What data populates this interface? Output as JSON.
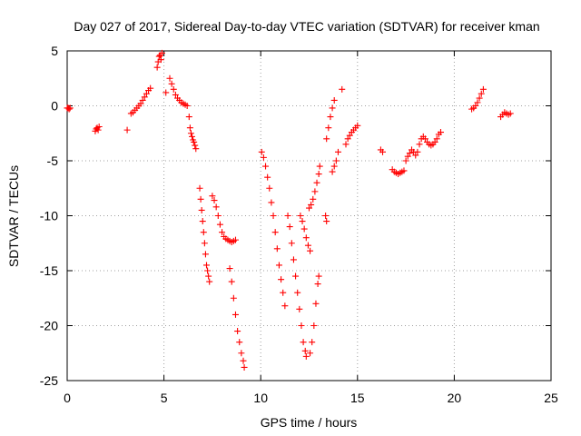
{
  "chart_data": {
    "type": "scatter",
    "title": "Day 027 of 2017, Sidereal Day-to-day VTEC variation (SDTVAR) for receiver kman",
    "xlabel": "GPS time / hours",
    "ylabel": "SDTVAR / TECUs",
    "xlim": [
      0,
      25
    ],
    "ylim": [
      -25,
      5
    ],
    "xticks": [
      "0",
      "5",
      "10",
      "15",
      "20",
      "25"
    ],
    "yticks": [
      "5",
      "0",
      "-5",
      "-10",
      "-15",
      "-20",
      "-25"
    ],
    "grid": true,
    "legend": "none",
    "marker": "plus",
    "color": "#ff0000",
    "series": [
      {
        "points": [
          [
            0.0,
            -0.2
          ],
          [
            0.05,
            -0.2
          ],
          [
            0.1,
            -0.3
          ],
          [
            0.15,
            -0.2
          ],
          [
            1.45,
            -2.3
          ],
          [
            1.5,
            -2.1
          ],
          [
            1.55,
            -2.0
          ],
          [
            1.6,
            -2.2
          ],
          [
            1.65,
            -1.9
          ],
          [
            3.1,
            -2.2
          ],
          [
            3.3,
            -0.7
          ],
          [
            3.4,
            -0.6
          ],
          [
            3.5,
            -0.4
          ],
          [
            3.6,
            -0.2
          ],
          [
            3.7,
            0.0
          ],
          [
            3.8,
            0.2
          ],
          [
            3.9,
            0.5
          ],
          [
            4.0,
            0.8
          ],
          [
            4.1,
            1.1
          ],
          [
            4.2,
            1.4
          ],
          [
            4.3,
            1.6
          ],
          [
            4.65,
            3.5
          ],
          [
            4.7,
            4.0
          ],
          [
            4.75,
            4.5
          ],
          [
            4.8,
            4.6
          ],
          [
            4.85,
            4.2
          ],
          [
            4.9,
            4.8
          ],
          [
            5.1,
            1.2
          ],
          [
            5.3,
            2.5
          ],
          [
            5.4,
            2.0
          ],
          [
            5.5,
            1.5
          ],
          [
            5.6,
            1.0
          ],
          [
            5.7,
            0.7
          ],
          [
            5.8,
            0.5
          ],
          [
            5.9,
            0.3
          ],
          [
            6.0,
            0.2
          ],
          [
            6.1,
            0.1
          ],
          [
            6.2,
            0.0
          ],
          [
            6.3,
            -1.0
          ],
          [
            6.35,
            -2.0
          ],
          [
            6.4,
            -2.5
          ],
          [
            6.45,
            -2.8
          ],
          [
            6.5,
            -3.1
          ],
          [
            6.55,
            -3.3
          ],
          [
            6.6,
            -3.6
          ],
          [
            6.65,
            -3.9
          ],
          [
            6.85,
            -7.5
          ],
          [
            6.9,
            -8.5
          ],
          [
            6.95,
            -9.5
          ],
          [
            7.0,
            -10.5
          ],
          [
            7.05,
            -11.5
          ],
          [
            7.1,
            -12.5
          ],
          [
            7.15,
            -13.5
          ],
          [
            7.2,
            -14.5
          ],
          [
            7.25,
            -15.0
          ],
          [
            7.3,
            -15.5
          ],
          [
            7.35,
            -16.0
          ],
          [
            7.5,
            -8.2
          ],
          [
            7.6,
            -8.6
          ],
          [
            7.7,
            -9.2
          ],
          [
            7.8,
            -10.0
          ],
          [
            7.9,
            -10.8
          ],
          [
            8.0,
            -11.5
          ],
          [
            8.1,
            -11.9
          ],
          [
            8.2,
            -12.1
          ],
          [
            8.3,
            -12.2
          ],
          [
            8.4,
            -12.3
          ],
          [
            8.5,
            -12.4
          ],
          [
            8.6,
            -12.3
          ],
          [
            8.7,
            -12.2
          ],
          [
            8.4,
            -14.8
          ],
          [
            8.5,
            -16.0
          ],
          [
            8.6,
            -17.5
          ],
          [
            8.7,
            -19.0
          ],
          [
            8.8,
            -20.5
          ],
          [
            8.9,
            -21.5
          ],
          [
            9.0,
            -22.5
          ],
          [
            9.1,
            -23.2
          ],
          [
            9.15,
            -23.8
          ],
          [
            10.05,
            -4.2
          ],
          [
            10.15,
            -4.7
          ],
          [
            10.25,
            -5.5
          ],
          [
            10.35,
            -6.5
          ],
          [
            10.45,
            -7.5
          ],
          [
            10.55,
            -8.8
          ],
          [
            10.65,
            -10.0
          ],
          [
            10.75,
            -11.5
          ],
          [
            10.85,
            -13.0
          ],
          [
            10.95,
            -14.5
          ],
          [
            11.05,
            -15.8
          ],
          [
            11.15,
            -17.0
          ],
          [
            11.25,
            -18.2
          ],
          [
            11.4,
            -10.0
          ],
          [
            11.5,
            -11.0
          ],
          [
            11.6,
            -12.5
          ],
          [
            11.7,
            -14.0
          ],
          [
            11.8,
            -15.5
          ],
          [
            11.9,
            -17.0
          ],
          [
            12.0,
            -18.5
          ],
          [
            12.1,
            -20.0
          ],
          [
            12.2,
            -21.5
          ],
          [
            12.3,
            -22.3
          ],
          [
            12.35,
            -22.8
          ],
          [
            12.05,
            -10.0
          ],
          [
            12.15,
            -10.5
          ],
          [
            12.25,
            -11.2
          ],
          [
            12.35,
            -12.0
          ],
          [
            12.45,
            -12.7
          ],
          [
            12.55,
            -13.2
          ],
          [
            12.55,
            -22.5
          ],
          [
            12.65,
            -21.5
          ],
          [
            12.75,
            -20.0
          ],
          [
            12.85,
            -18.0
          ],
          [
            12.95,
            -16.2
          ],
          [
            13.0,
            -15.5
          ],
          [
            12.5,
            -9.3
          ],
          [
            12.6,
            -9.0
          ],
          [
            12.7,
            -8.5
          ],
          [
            12.8,
            -7.8
          ],
          [
            12.9,
            -7.0
          ],
          [
            13.0,
            -6.2
          ],
          [
            13.05,
            -5.5
          ],
          [
            13.35,
            -10.0
          ],
          [
            13.4,
            -10.5
          ],
          [
            13.4,
            -3.0
          ],
          [
            13.5,
            -2.0
          ],
          [
            13.6,
            -1.0
          ],
          [
            13.7,
            -0.2
          ],
          [
            13.8,
            0.5
          ],
          [
            13.7,
            -6.0
          ],
          [
            13.8,
            -5.5
          ],
          [
            13.9,
            -5.0
          ],
          [
            14.0,
            -4.2
          ],
          [
            14.2,
            1.5
          ],
          [
            14.4,
            -3.5
          ],
          [
            14.5,
            -3.0
          ],
          [
            14.6,
            -2.7
          ],
          [
            14.7,
            -2.4
          ],
          [
            14.8,
            -2.2
          ],
          [
            14.9,
            -2.0
          ],
          [
            15.0,
            -1.8
          ],
          [
            16.2,
            -4.0
          ],
          [
            16.3,
            -4.2
          ],
          [
            16.8,
            -5.8
          ],
          [
            16.9,
            -6.0
          ],
          [
            17.0,
            -6.1
          ],
          [
            17.1,
            -6.2
          ],
          [
            17.2,
            -6.1
          ],
          [
            17.3,
            -6.0
          ],
          [
            17.4,
            -5.9
          ],
          [
            17.5,
            -5.0
          ],
          [
            17.6,
            -4.6
          ],
          [
            17.7,
            -4.3
          ],
          [
            17.8,
            -4.0
          ],
          [
            17.9,
            -4.2
          ],
          [
            18.0,
            -4.5
          ],
          [
            18.1,
            -4.2
          ],
          [
            18.2,
            -3.5
          ],
          [
            18.3,
            -3.0
          ],
          [
            18.4,
            -2.8
          ],
          [
            18.5,
            -3.0
          ],
          [
            18.6,
            -3.3
          ],
          [
            18.7,
            -3.5
          ],
          [
            18.8,
            -3.6
          ],
          [
            18.9,
            -3.5
          ],
          [
            19.0,
            -3.3
          ],
          [
            19.1,
            -3.0
          ],
          [
            19.2,
            -2.6
          ],
          [
            19.3,
            -2.4
          ],
          [
            20.9,
            -0.3
          ],
          [
            21.0,
            -0.2
          ],
          [
            21.1,
            0.0
          ],
          [
            21.2,
            0.3
          ],
          [
            21.3,
            0.7
          ],
          [
            21.4,
            1.1
          ],
          [
            21.5,
            1.5
          ],
          [
            22.4,
            -1.0
          ],
          [
            22.5,
            -0.8
          ],
          [
            22.6,
            -0.6
          ],
          [
            22.7,
            -0.7
          ],
          [
            22.8,
            -0.8
          ],
          [
            22.9,
            -0.7
          ]
        ]
      }
    ]
  }
}
